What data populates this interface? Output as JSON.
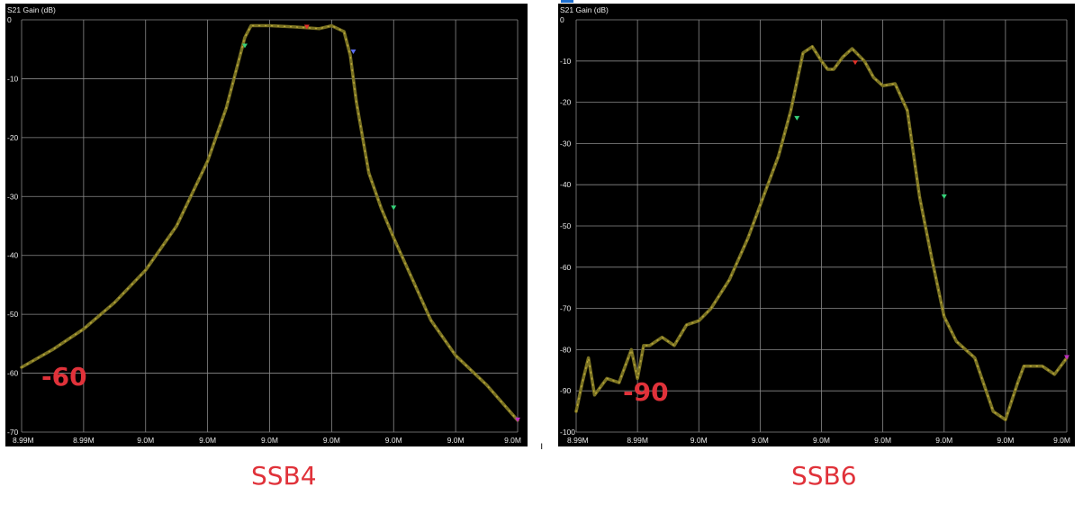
{
  "charts": [
    {
      "caption": "SSB4",
      "chart_data": {
        "type": "line",
        "ylabel": "S21 Gain (dB)",
        "ylim": [
          -70,
          0
        ],
        "yticks": [
          0,
          -10,
          -20,
          -30,
          -40,
          -50,
          -60,
          -70
        ],
        "xlim": [
          0,
          8
        ],
        "xtick_labels": [
          "8.99M",
          "8.99M",
          "9.0M",
          "9.0M",
          "9.0M",
          "9.0M",
          "9.0M",
          "9.0M",
          "9.0M"
        ],
        "grid": true,
        "annotation": "-60",
        "series": [
          {
            "line_color": "#7a7222",
            "x": [
              0,
              0.5,
              1,
              1.5,
              2,
              2.5,
              3,
              3.3,
              3.5,
              3.6,
              3.7,
              3.8,
              4.0,
              4.4,
              4.8,
              5.0,
              5.2,
              5.3,
              5.4,
              5.6,
              5.8,
              6.0,
              6.3,
              6.6,
              7.0,
              7.5,
              8.0
            ],
            "y": [
              -59,
              -56,
              -52.5,
              -48,
              -42.5,
              -35,
              -24,
              -15,
              -7,
              -3,
              -1,
              -1,
              -1,
              -1.2,
              -1.5,
              -1,
              -2,
              -6,
              -14,
              -26,
              -32,
              -37,
              -44,
              -51,
              -57,
              -62,
              -68
            ]
          }
        ],
        "markers": [
          {
            "x": 3.6,
            "y": -4.5,
            "color": "#36d27a"
          },
          {
            "x": 4.6,
            "y": -1.3,
            "color": "#e0322a"
          },
          {
            "x": 5.35,
            "y": -5.5,
            "color": "#5a6cf0"
          },
          {
            "x": 6.0,
            "y": -32,
            "color": "#36d27a"
          },
          {
            "x": 8.0,
            "y": -68,
            "color": "#c030c0"
          }
        ]
      }
    },
    {
      "caption": "SSB6",
      "chart_data": {
        "type": "line",
        "ylabel": "S21 Gain (dB)",
        "ylim": [
          -100,
          0
        ],
        "yticks": [
          0,
          -10,
          -20,
          -30,
          -40,
          -50,
          -60,
          -70,
          -80,
          -90,
          -100
        ],
        "xlim": [
          0,
          8
        ],
        "xtick_labels": [
          "8.99M",
          "8.99M",
          "9.0M",
          "9.0M",
          "9.0M",
          "9.0M",
          "9.0M",
          "9.0M",
          "9.0M"
        ],
        "grid": true,
        "annotation": "-90",
        "series": [
          {
            "line_color": "#7a7222",
            "x": [
              0,
              0.1,
              0.2,
              0.3,
              0.5,
              0.7,
              0.9,
              1.0,
              1.1,
              1.2,
              1.4,
              1.6,
              1.8,
              2.0,
              2.2,
              2.5,
              2.8,
              3.0,
              3.3,
              3.5,
              3.7,
              3.85,
              4.0,
              4.1,
              4.2,
              4.35,
              4.5,
              4.7,
              4.85,
              5.0,
              5.2,
              5.4,
              5.6,
              5.8,
              6.0,
              6.2,
              6.5,
              6.8,
              7.0,
              7.2,
              7.3,
              7.4,
              7.6,
              7.8,
              8.0
            ],
            "y": [
              -95,
              -88,
              -82,
              -91,
              -87,
              -88,
              -80,
              -87,
              -79,
              -79,
              -77,
              -79,
              -74,
              -73,
              -70,
              -63,
              -53,
              -45,
              -33,
              -22,
              -8,
              -6.5,
              -10,
              -12,
              -12,
              -9,
              -7,
              -10,
              -14,
              -16,
              -15.5,
              -22,
              -43,
              -58,
              -72,
              -78,
              -82,
              -95,
              -97,
              -88,
              -84,
              -84,
              -84,
              -86,
              -82
            ]
          }
        ],
        "markers": [
          {
            "x": 3.6,
            "y": -24,
            "color": "#36d27a"
          },
          {
            "x": 4.55,
            "y": -10.5,
            "color": "#e0322a"
          },
          {
            "x": 6.0,
            "y": -43,
            "color": "#36d27a"
          },
          {
            "x": 8.0,
            "y": -82,
            "color": "#c030c0"
          }
        ]
      }
    }
  ],
  "stray_mark": "ı",
  "colors": {
    "background": "#000000",
    "grid": "#8a8a8a",
    "text": "#e8e8e8",
    "caption": "#e0323a",
    "line": "#7a7222",
    "line_dots": "#b8a63a"
  }
}
